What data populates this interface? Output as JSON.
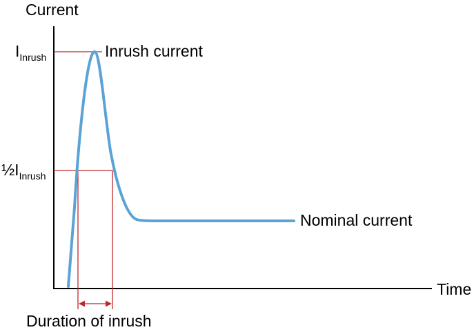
{
  "axes": {
    "y_label": "Current",
    "x_label": "Time"
  },
  "markers": {
    "peak_symbol": "I",
    "peak_subscript": "Inrush",
    "half_prefix": "½I",
    "half_subscript": "Inrush"
  },
  "annotations": {
    "peak": "Inrush current",
    "steady": "Nominal current",
    "duration": "Duration of inrush"
  },
  "colors": {
    "curve": "#5ba3d6",
    "guide": "#c0262d",
    "axis": "#000000"
  }
}
